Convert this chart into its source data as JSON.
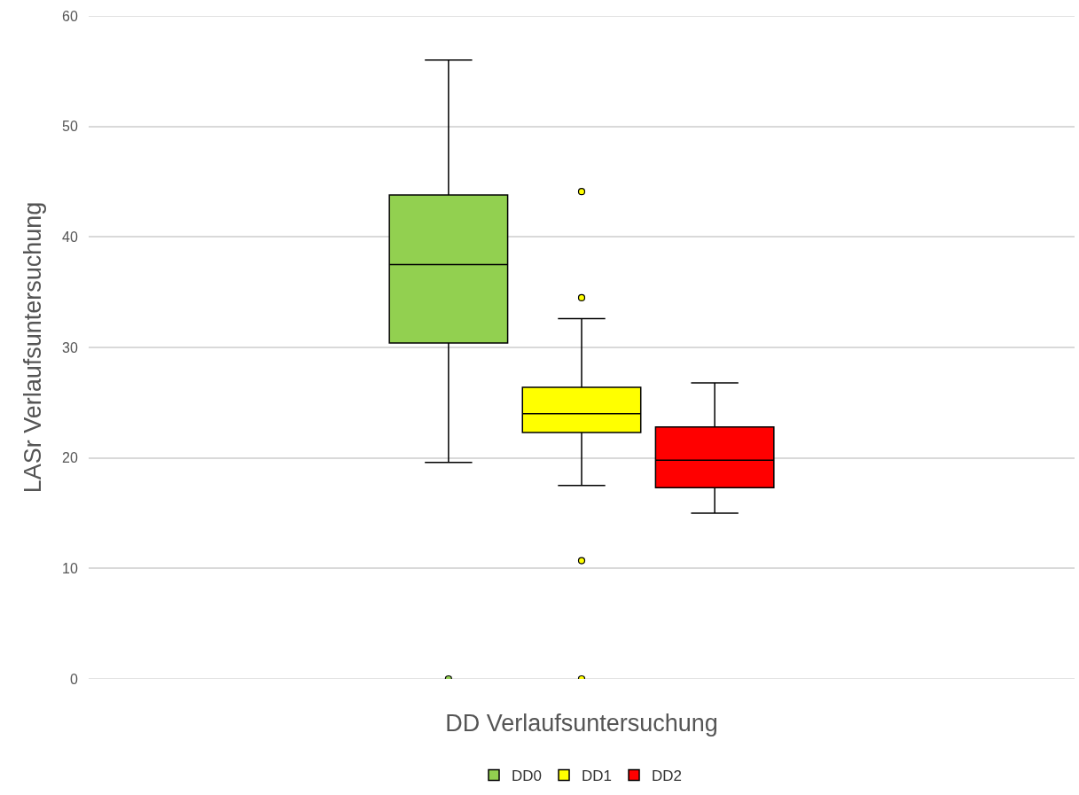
{
  "chart_data": {
    "type": "box",
    "xlabel": "DD Verlaufsuntersuchung",
    "ylabel": "LASr Verlaufsuntersuchung",
    "categories": [
      null
    ],
    "ylim": [
      0,
      60
    ],
    "yticks": [
      0,
      10,
      20,
      30,
      40,
      50,
      60
    ],
    "grid": "y",
    "legend": "bottom",
    "tick_labels": "y",
    "series": [
      {
        "name": "DD0",
        "color": "#92d050",
        "boxes": [
          {
            "low": 19.6,
            "q1": 30.4,
            "median": 37.5,
            "q3": 43.8,
            "high": 56.0,
            "outliers": [
              0
            ]
          }
        ]
      },
      {
        "name": "DD1",
        "color": "#ffff00",
        "boxes": [
          {
            "low": 17.5,
            "q1": 22.3,
            "median": 24.0,
            "q3": 26.4,
            "high": 32.6,
            "outliers": [
              44.1,
              34.5,
              10.7,
              0
            ]
          }
        ]
      },
      {
        "name": "DD2",
        "color": "#ff0000",
        "boxes": [
          {
            "low": 15.0,
            "q1": 17.3,
            "median": 19.8,
            "q3": 22.8,
            "high": 26.8
          }
        ]
      }
    ]
  }
}
